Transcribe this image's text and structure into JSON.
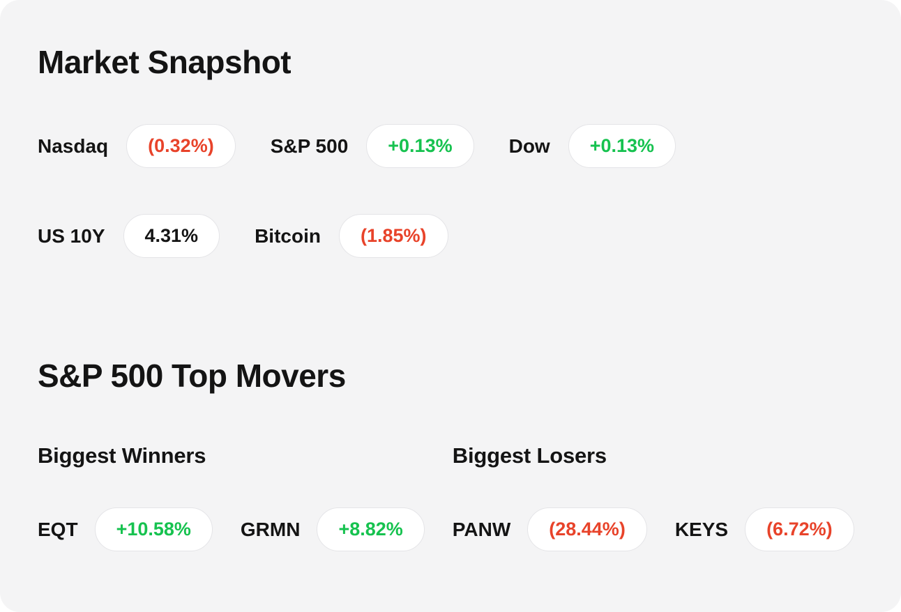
{
  "colors": {
    "positive": "#16c24f",
    "negative": "#e8432a",
    "neutral": "#141414",
    "card_background": "#f4f4f5",
    "pill_background": "#ffffff",
    "pill_border": "#e4e4e7"
  },
  "market_snapshot": {
    "title": "Market Snapshot",
    "rows": [
      [
        {
          "label": "Nasdaq",
          "value": "(0.32%)",
          "sentiment": "negative"
        },
        {
          "label": "S&P 500",
          "value": "+0.13%",
          "sentiment": "positive"
        },
        {
          "label": "Dow",
          "value": "+0.13%",
          "sentiment": "positive"
        }
      ],
      [
        {
          "label": "US 10Y",
          "value": "4.31%",
          "sentiment": "neutral"
        },
        {
          "label": "Bitcoin",
          "value": "(1.85%)",
          "sentiment": "negative"
        }
      ]
    ]
  },
  "top_movers": {
    "title": "S&P 500 Top Movers",
    "winners": {
      "heading": "Biggest Winners",
      "items": [
        {
          "ticker": "EQT",
          "value": "+10.58%",
          "sentiment": "positive"
        },
        {
          "ticker": "GRMN",
          "value": "+8.82%",
          "sentiment": "positive"
        }
      ]
    },
    "losers": {
      "heading": "Biggest Losers",
      "items": [
        {
          "ticker": "PANW",
          "value": "(28.44%)",
          "sentiment": "negative"
        },
        {
          "ticker": "KEYS",
          "value": "(6.72%)",
          "sentiment": "negative"
        }
      ]
    }
  }
}
